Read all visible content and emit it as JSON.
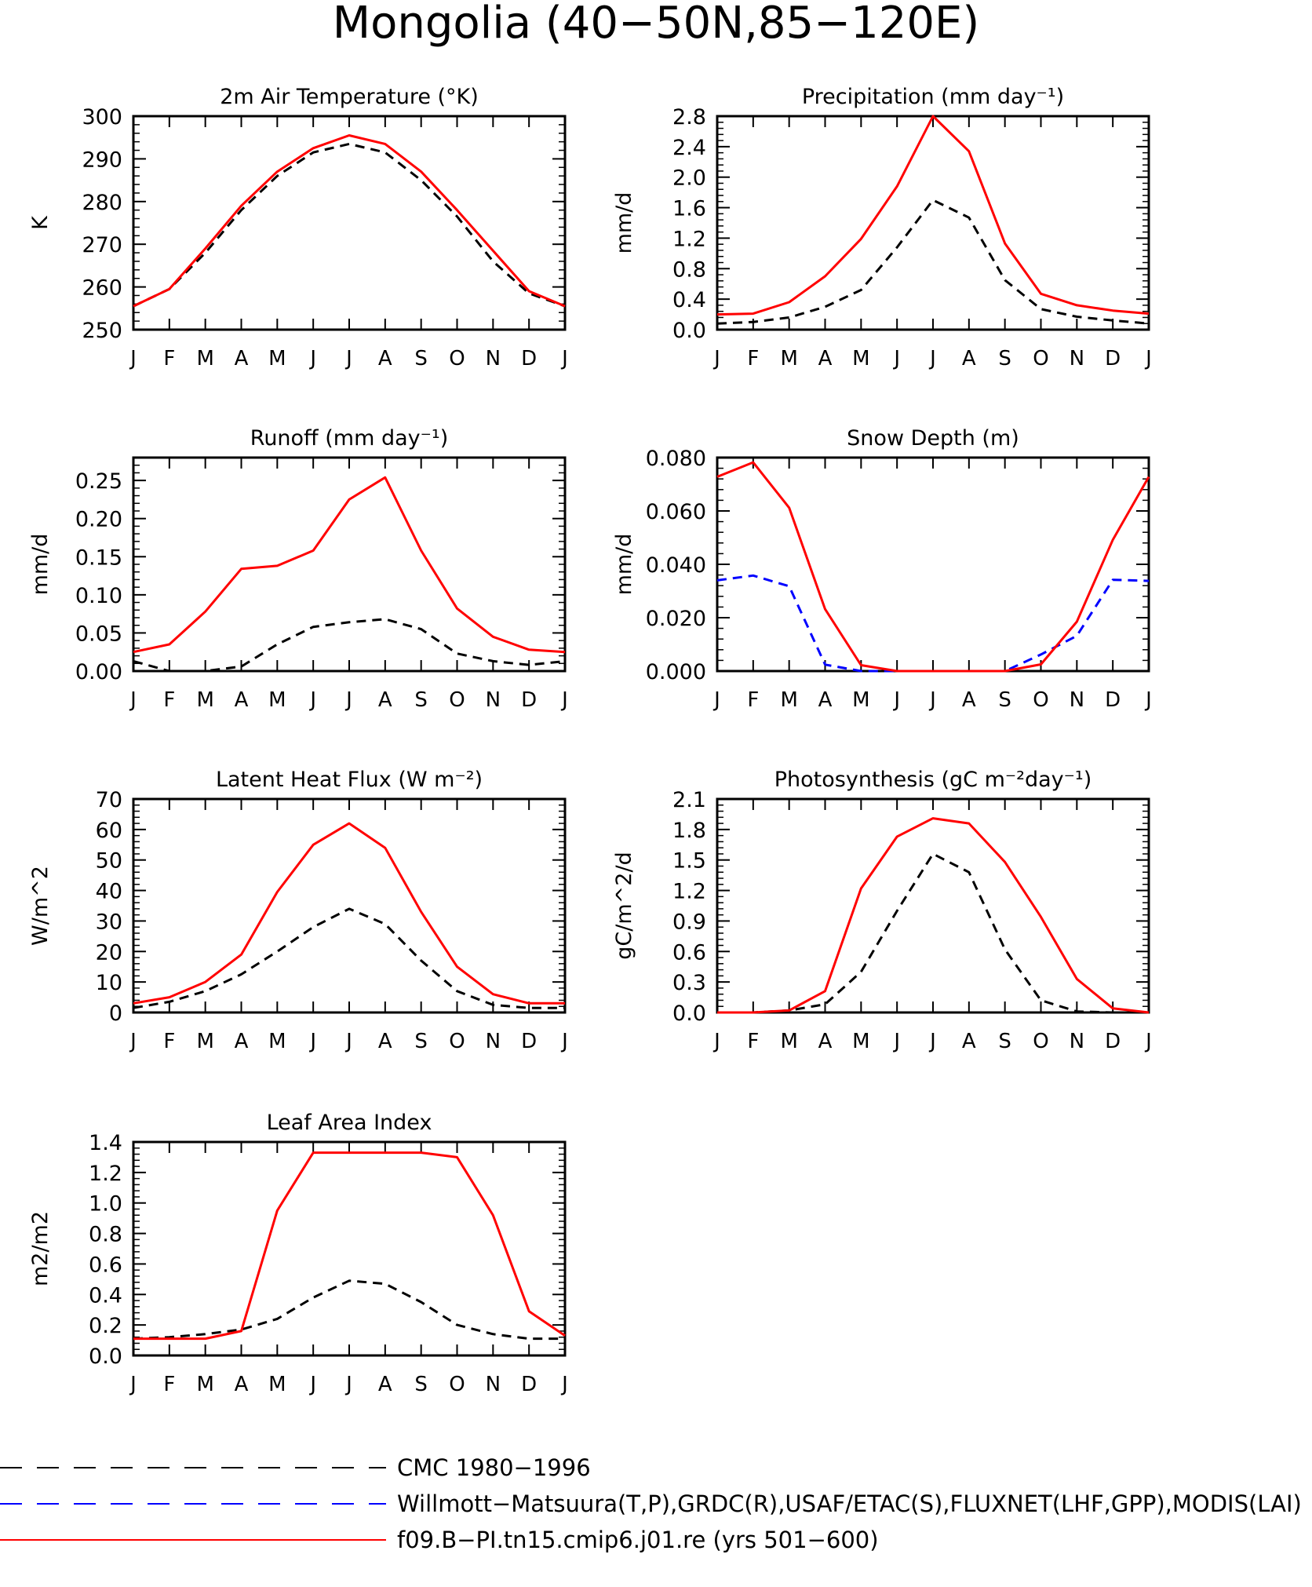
{
  "figure": {
    "title": "Mongolia (40−50N,85−120E)",
    "months": [
      "J",
      "F",
      "M",
      "A",
      "M",
      "J",
      "J",
      "A",
      "S",
      "O",
      "N",
      "D",
      "J"
    ]
  },
  "legend": {
    "items": [
      {
        "label": "CMC 1980−1996",
        "color": "#000000",
        "style": "dash"
      },
      {
        "label": "Willmott−Matsuura(T,P),GRDC(R),USAF/ETAC(S),FLUXNET(LHF,GPP),MODIS(LAI)",
        "color": "#0000ff",
        "style": "dash"
      },
      {
        "label": "f09.B−PI.tn15.cmip6.j01.re (yrs 501−600)",
        "color": "#ff0000",
        "style": "solid"
      }
    ]
  },
  "chart_data": [
    {
      "type": "line",
      "title": "2m Air Temperature (°K)",
      "ylabel": "K",
      "ylim": [
        250,
        300
      ],
      "yticks": [
        "250",
        "260",
        "270",
        "280",
        "290",
        "300"
      ],
      "x": [
        "J",
        "F",
        "M",
        "A",
        "M",
        "J",
        "J",
        "A",
        "S",
        "O",
        "N",
        "D",
        "J"
      ],
      "series": [
        {
          "color": "#000000",
          "style": "dash",
          "values": [
            255.5,
            259.5,
            268,
            278,
            286,
            291.5,
            293.5,
            291.5,
            285,
            276.5,
            266,
            258.5,
            255.5
          ]
        },
        {
          "color": "#ff0000",
          "style": "solid",
          "values": [
            255.5,
            259.5,
            269,
            279,
            287,
            292.5,
            295.5,
            293.5,
            287,
            278,
            268.5,
            259,
            255.5
          ]
        }
      ]
    },
    {
      "type": "line",
      "title": "Precipitation (mm day⁻¹)",
      "ylabel": "mm/d",
      "ylim": [
        0,
        2.8
      ],
      "yticks": [
        "0.0",
        "0.4",
        "0.8",
        "1.2",
        "1.6",
        "2.0",
        "2.4",
        "2.8"
      ],
      "x": [
        "J",
        "F",
        "M",
        "A",
        "M",
        "J",
        "J",
        "A",
        "S",
        "O",
        "N",
        "D",
        "J"
      ],
      "series": [
        {
          "color": "#000000",
          "style": "dash",
          "values": [
            0.08,
            0.1,
            0.16,
            0.3,
            0.52,
            1.08,
            1.7,
            1.47,
            0.65,
            0.27,
            0.17,
            0.12,
            0.08
          ]
        },
        {
          "color": "#ff0000",
          "style": "solid",
          "values": [
            0.2,
            0.21,
            0.36,
            0.7,
            1.19,
            1.88,
            2.8,
            2.34,
            1.13,
            0.47,
            0.32,
            0.25,
            0.21
          ]
        }
      ]
    },
    {
      "type": "line",
      "title": "Runoff (mm day⁻¹)",
      "ylabel": "mm/d",
      "ylim": [
        0,
        0.28
      ],
      "yticks": [
        "0.00",
        "0.05",
        "0.10",
        "0.15",
        "0.20",
        "0.25"
      ],
      "x": [
        "J",
        "F",
        "M",
        "A",
        "M",
        "J",
        "J",
        "A",
        "S",
        "O",
        "N",
        "D",
        "J"
      ],
      "series": [
        {
          "color": "#000000",
          "style": "dash",
          "values": [
            0.013,
            0.0,
            0.0,
            0.006,
            0.035,
            0.058,
            0.064,
            0.068,
            0.055,
            0.023,
            0.013,
            0.008,
            0.013
          ]
        },
        {
          "color": "#ff0000",
          "style": "solid",
          "values": [
            0.025,
            0.035,
            0.078,
            0.134,
            0.138,
            0.158,
            0.225,
            0.254,
            0.158,
            0.082,
            0.045,
            0.028,
            0.025
          ]
        }
      ]
    },
    {
      "type": "line",
      "title": "Snow Depth (m)",
      "ylabel": "mm/d",
      "ylim": [
        0,
        0.08
      ],
      "yticks": [
        "0.000",
        "0.020",
        "0.040",
        "0.060",
        "0.080"
      ],
      "x": [
        "J",
        "F",
        "M",
        "A",
        "M",
        "J",
        "J",
        "A",
        "S",
        "O",
        "N",
        "D",
        "J"
      ],
      "series": [
        {
          "color": "#000000",
          "style": "dash",
          "values": [
            0,
            0,
            0,
            0,
            0,
            0,
            0,
            0,
            0,
            0,
            0,
            0,
            0
          ]
        },
        {
          "color": "#0000ff",
          "style": "dash",
          "values": [
            0.034,
            0.0358,
            0.0318,
            0.0024,
            0.0,
            0.0,
            0.0,
            0.0,
            0.0,
            0.0062,
            0.0132,
            0.0342,
            0.0338
          ]
        },
        {
          "color": "#ff0000",
          "style": "solid",
          "values": [
            0.0728,
            0.0782,
            0.0612,
            0.0232,
            0.0022,
            0.0,
            0.0,
            0.0,
            0.0,
            0.0025,
            0.0185,
            0.0492,
            0.0728
          ]
        }
      ]
    },
    {
      "type": "line",
      "title": "Latent Heat Flux (W m⁻²)",
      "ylabel": "W/m^2",
      "ylim": [
        0,
        70
      ],
      "yticks": [
        "0",
        "10",
        "20",
        "30",
        "40",
        "50",
        "60",
        "70"
      ],
      "x": [
        "J",
        "F",
        "M",
        "A",
        "M",
        "J",
        "J",
        "A",
        "S",
        "O",
        "N",
        "D",
        "J"
      ],
      "series": [
        {
          "color": "#000000",
          "style": "dash",
          "values": [
            1.5,
            3.5,
            7,
            12.5,
            20,
            28,
            34,
            29,
            17,
            7,
            2.5,
            1.5,
            1.5
          ]
        },
        {
          "color": "#ff0000",
          "style": "solid",
          "values": [
            3,
            5,
            10,
            19,
            39.5,
            55,
            62,
            54,
            33,
            15,
            6,
            3,
            3
          ]
        }
      ]
    },
    {
      "type": "line",
      "title": "Photosynthesis (gC m⁻²day⁻¹)",
      "ylabel": "gC/m^2/d",
      "ylim": [
        0,
        2.1
      ],
      "yticks": [
        "0.0",
        "0.3",
        "0.6",
        "0.9",
        "1.2",
        "1.5",
        "1.8",
        "2.1"
      ],
      "x": [
        "J",
        "F",
        "M",
        "A",
        "M",
        "J",
        "J",
        "A",
        "S",
        "O",
        "N",
        "D",
        "J"
      ],
      "series": [
        {
          "color": "#000000",
          "style": "dash",
          "values": [
            0.0,
            0.0,
            0.02,
            0.08,
            0.4,
            1.0,
            1.56,
            1.38,
            0.62,
            0.12,
            0.01,
            0.0,
            0.0
          ]
        },
        {
          "color": "#ff0000",
          "style": "solid",
          "values": [
            0.0,
            0.0,
            0.02,
            0.21,
            1.22,
            1.73,
            1.91,
            1.86,
            1.48,
            0.94,
            0.33,
            0.04,
            0.0
          ]
        }
      ]
    },
    {
      "type": "line",
      "title": "Leaf Area Index",
      "ylabel": "m2/m2",
      "ylim": [
        0,
        1.4
      ],
      "yticks": [
        "0.0",
        "0.2",
        "0.4",
        "0.6",
        "0.8",
        "1.0",
        "1.2",
        "1.4"
      ],
      "x": [
        "J",
        "F",
        "M",
        "A",
        "M",
        "J",
        "J",
        "A",
        "S",
        "O",
        "N",
        "D",
        "J"
      ],
      "series": [
        {
          "color": "#000000",
          "style": "dash",
          "values": [
            0.11,
            0.12,
            0.14,
            0.17,
            0.24,
            0.38,
            0.49,
            0.47,
            0.35,
            0.2,
            0.14,
            0.11,
            0.11
          ]
        },
        {
          "color": "#ff0000",
          "style": "solid",
          "values": [
            0.11,
            0.11,
            0.11,
            0.16,
            0.95,
            1.33,
            1.33,
            1.33,
            1.33,
            1.3,
            0.92,
            0.29,
            0.13
          ]
        }
      ]
    }
  ]
}
